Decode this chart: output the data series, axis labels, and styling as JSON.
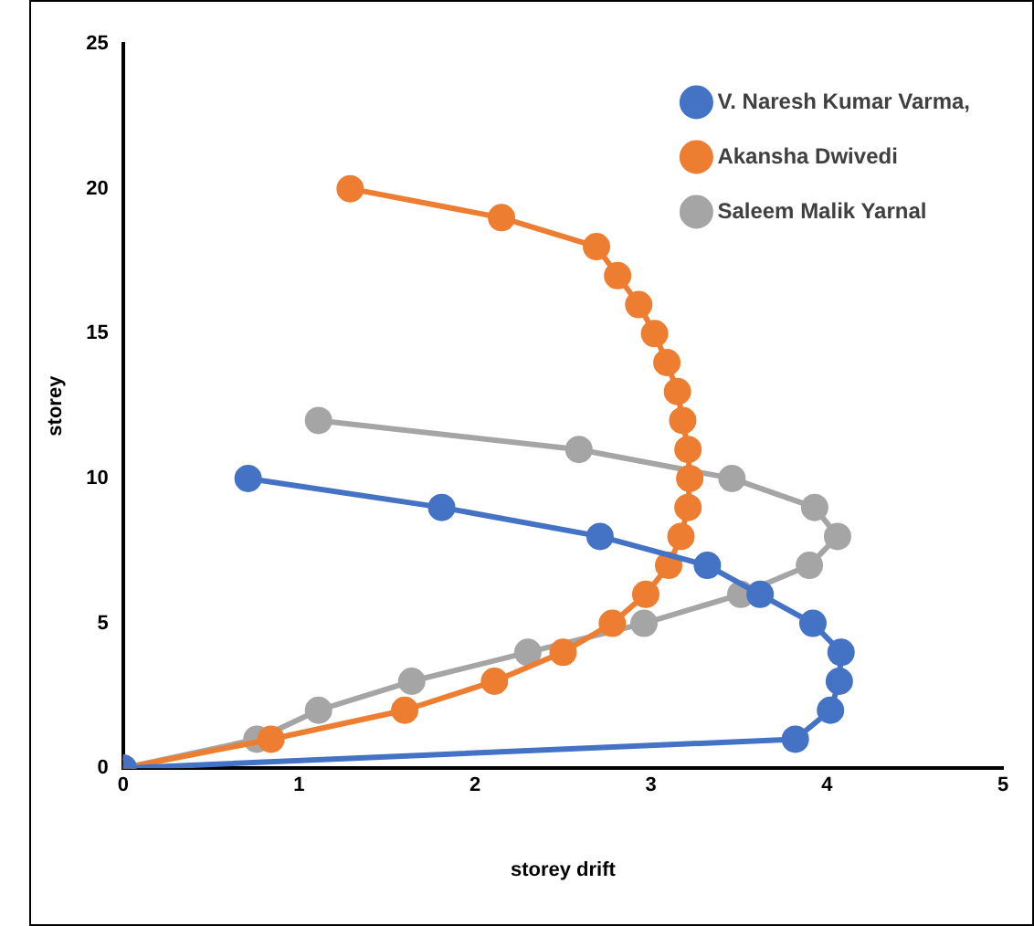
{
  "chart_data": {
    "type": "line",
    "xlabel": "storey drift",
    "ylabel": "storey",
    "xlim": [
      0,
      5
    ],
    "xticks": [
      0,
      1,
      2,
      3,
      4,
      5
    ],
    "ylim": [
      0,
      25
    ],
    "yticks": [
      0,
      5,
      10,
      15,
      20,
      25
    ],
    "grid": false,
    "legend": "top right",
    "marker": "circle",
    "line_style": "solid",
    "series": [
      {
        "name": "V. Naresh Kumar Varma,",
        "color": "#4472c4",
        "x": [
          0,
          3.82,
          4.02,
          4.07,
          4.08,
          3.92,
          3.62,
          3.32,
          2.71,
          1.81,
          0.71
        ],
        "values": [
          0,
          1,
          2,
          3,
          4,
          5,
          6,
          7,
          8,
          9,
          10
        ]
      },
      {
        "name": "Akansha Dwivedi",
        "color": "#ed7d31",
        "x": [
          0,
          0.84,
          1.6,
          2.11,
          2.5,
          2.78,
          2.97,
          3.1,
          3.17,
          3.21,
          3.22,
          3.21,
          3.18,
          3.15,
          3.09,
          3.02,
          2.93,
          2.81,
          2.69,
          2.15,
          1.29
        ],
        "values": [
          0,
          1,
          2,
          3,
          4,
          5,
          6,
          7,
          8,
          9,
          10,
          11,
          12,
          13,
          14,
          15,
          16,
          17,
          18,
          19,
          20
        ]
      },
      {
        "name": "Saleem Malik Yarnal",
        "color": "#a5a5a5",
        "x": [
          0,
          0.76,
          1.11,
          1.64,
          2.3,
          2.96,
          3.51,
          3.9,
          4.06,
          3.93,
          3.46,
          2.59,
          1.11
        ],
        "values": [
          0,
          1,
          2,
          3,
          4,
          5,
          6,
          7,
          8,
          9,
          10,
          11,
          12
        ]
      }
    ]
  }
}
